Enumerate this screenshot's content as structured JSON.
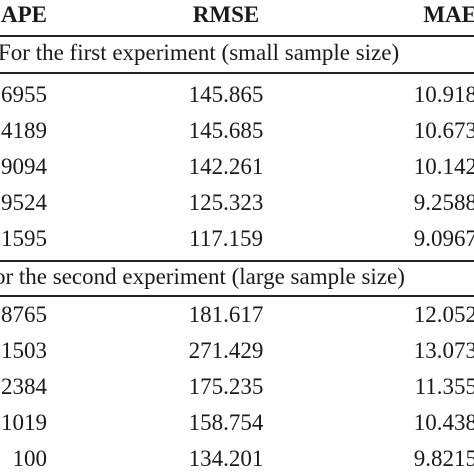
{
  "table": {
    "headers": [
      "APE",
      "RMSE",
      "MAE"
    ],
    "sections": [
      {
        "title": "For the first experiment (small sample size)",
        "rows": [
          [
            "6955",
            "145.865",
            "10.918"
          ],
          [
            "4189",
            "145.685",
            "10.673"
          ],
          [
            "9094",
            "142.261",
            "10.142"
          ],
          [
            "9524",
            "125.323",
            "9.2588"
          ],
          [
            "1595",
            "117.159",
            "9.0967"
          ]
        ]
      },
      {
        "title": "or the second experiment (large sample size)",
        "rows": [
          [
            "8765",
            "181.617",
            "12.052"
          ],
          [
            "1503",
            "271.429",
            "13.073"
          ],
          [
            "2384",
            "175.235",
            "11.355"
          ],
          [
            "1019",
            "158.754",
            "10.438"
          ],
          [
            "100",
            "134.201",
            "9.8215"
          ]
        ]
      }
    ]
  }
}
